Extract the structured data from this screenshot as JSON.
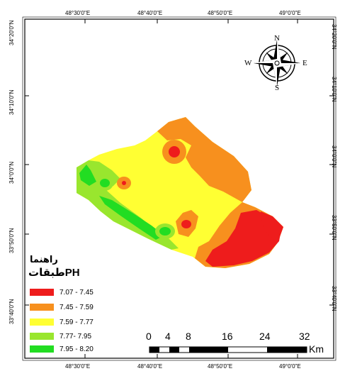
{
  "map": {
    "colors": {
      "c1": "#ee1c1c",
      "c2": "#f7901e",
      "c3": "#ffff33",
      "c4": "#99e62e",
      "c5": "#22dd22"
    },
    "top_longitudes": [
      "48°30'0\"E",
      "48°40'0\"E",
      "48°50'0\"E",
      "49°0'0\"E"
    ],
    "bottom_longitudes": [
      "48°30'0\"E",
      "48°40'0\"E",
      "48°50'0\"E",
      "49°0'0\"E"
    ],
    "left_latitudes": [
      "34°20'0\"N",
      "34°10'0\"N",
      "34°0'0\"N",
      "33°50'0\"N",
      "33°40'0\"N"
    ],
    "right_latitudes": [
      "34°20'0\"N",
      "34°10'0\"N",
      "34°0'0\"N",
      "33°50'0\"N",
      "33°40'0\"N"
    ]
  },
  "compass": {
    "n": "N",
    "s": "S",
    "e": "E",
    "w": "W"
  },
  "legend": {
    "title_line1": "راهنما",
    "title_line2": "طبقاتPH",
    "items": [
      {
        "label": "7.07 - 7.45",
        "color": "#ee1c1c"
      },
      {
        "label": "7.45 - 7.59",
        "color": "#f7901e"
      },
      {
        "label": "7.59 - 7.77",
        "color": "#ffff33"
      },
      {
        "label": "7.77- 7.95",
        "color": "#99e62e"
      },
      {
        "label": "7.95 - 8.20",
        "color": "#22dd22"
      }
    ]
  },
  "scale_bar": {
    "ticks": [
      "0",
      "4",
      "8",
      "16",
      "24",
      "32"
    ],
    "unit": "Km"
  }
}
